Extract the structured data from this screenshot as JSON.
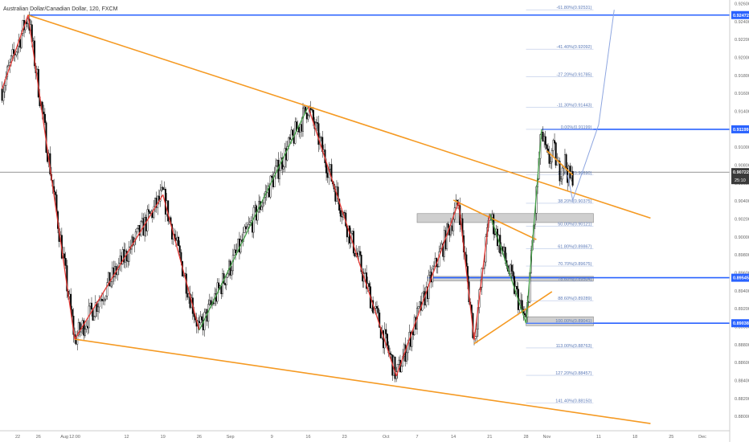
{
  "header": {
    "title": "Australian Dollar/Canadian Dollar, 120, FXCM"
  },
  "colors": {
    "candle": "#000000",
    "wedge": "#f59a23",
    "wave_down": "#e53935",
    "wave_up": "#43a047",
    "level_line": "#2962ff",
    "fib_text": "#5b7ab8",
    "zone_fill": "#cfcfcf",
    "zone_edge": "#888888",
    "current_price_line": "#555555",
    "axis_text": "#666666",
    "badge_text": "#ffffff",
    "projection": "#8ea6e0"
  },
  "chart_data": {
    "type": "line",
    "title": "Australian Dollar/Canadian Dollar, 120, FXCM",
    "xlabel": "",
    "ylabel": "",
    "ylim": [
      0.8784,
      0.9264
    ],
    "grid": false,
    "x_ticks": [
      "22",
      "26",
      "Aug",
      "12:00",
      "12",
      "19",
      "26",
      "Sep",
      "9",
      "16",
      "23",
      "Oct",
      "7",
      "14",
      "21",
      "28",
      "Nov",
      "11",
      "18",
      "25",
      "Dec"
    ],
    "y_ticks": [
      "0.92600",
      "0.92400",
      "0.92200",
      "0.92000",
      "0.91800",
      "0.91600",
      "0.91400",
      "0.91200",
      "0.91000",
      "0.90800",
      "0.90600",
      "0.90400",
      "0.90200",
      "0.90000",
      "0.89800",
      "0.89600",
      "0.89400",
      "0.89200",
      "0.89000",
      "0.88800",
      "0.88600",
      "0.88400",
      "0.88200",
      "0.88000"
    ],
    "price_badges": [
      {
        "label": "0.92472",
        "value": 0.92472,
        "color": "#2962ff"
      },
      {
        "label": "0.91199",
        "value": 0.91199,
        "color": "#2962ff"
      },
      {
        "label": "0.90722",
        "value": 0.90722,
        "color": "#3a3a3a",
        "sub": "25:10"
      },
      {
        "label": "0.89545",
        "value": 0.89545,
        "color": "#2962ff"
      },
      {
        "label": "0.89038",
        "value": 0.89038,
        "color": "#2962ff"
      }
    ],
    "horizontal_levels": [
      0.92472,
      0.91199,
      0.89545,
      0.89038
    ],
    "current_price": 0.90722,
    "fib_levels": [
      {
        "label": "-61.80%(0.92531)",
        "value": 0.92531
      },
      {
        "label": "-41.40%(0.92092)",
        "value": 0.92092
      },
      {
        "label": "-27.20%(0.91785)",
        "value": 0.91785
      },
      {
        "label": "-11.30%(0.91443)",
        "value": 0.91443
      },
      {
        "label": "0.00%(0.91199)",
        "value": 0.91199
      },
      {
        "label": "23.60%(0.90690)",
        "value": 0.9069
      },
      {
        "label": "38.20%(0.90375)",
        "value": 0.90375
      },
      {
        "label": "50.00%(0.90121)",
        "value": 0.90121
      },
      {
        "label": "61.80%(0.89867)",
        "value": 0.89867
      },
      {
        "label": "70.70%(0.89675)",
        "value": 0.89675
      },
      {
        "label": "78.60%(0.89504)",
        "value": 0.89504
      },
      {
        "label": "88.60%(0.89289)",
        "value": 0.89289
      },
      {
        "label": "100.00%(0.89041)",
        "value": 0.89041
      },
      {
        "label": "113.00%(0.88763)",
        "value": 0.88763
      },
      {
        "label": "127.20%(0.88457)",
        "value": 0.88457
      },
      {
        "label": "141.40%(0.88150)",
        "value": 0.8815
      }
    ],
    "zigzag": [
      {
        "date": "Jul 19",
        "price": 0.9165
      },
      {
        "date": "Jul 24",
        "price": 0.92472
      },
      {
        "date": "Aug 2",
        "price": 0.8886
      },
      {
        "date": "Aug 19",
        "price": 0.9047
      },
      {
        "date": "Aug 26",
        "price": 0.8896
      },
      {
        "date": "Sep 16",
        "price": 0.9145
      },
      {
        "date": "Oct 3",
        "price": 0.8845
      },
      {
        "date": "Oct 15",
        "price": 0.9039
      },
      {
        "date": "Oct 18",
        "price": 0.8885
      },
      {
        "date": "Oct 21",
        "price": 0.9026
      },
      {
        "date": "Oct 28",
        "price": 0.89038
      },
      {
        "date": "Oct 31",
        "price": 0.91199
      }
    ],
    "trendlines": [
      {
        "from": {
          "date": "Jul 24",
          "price": 0.92472
        },
        "to": {
          "date": "Nov 21",
          "price": 0.9021
        }
      },
      {
        "from": {
          "date": "Aug 2",
          "price": 0.8886
        },
        "to": {
          "date": "Nov 21",
          "price": 0.8792
        }
      },
      {
        "from": {
          "date": "Oct 14",
          "price": 0.9041
        },
        "to": {
          "date": "Oct 30",
          "price": 0.8997
        }
      },
      {
        "from": {
          "date": "Oct 18",
          "price": 0.8881
        },
        "to": {
          "date": "Nov 2",
          "price": 0.8939
        }
      },
      {
        "from": {
          "date": "Nov 1",
          "price": 0.9096
        },
        "to": {
          "date": "Nov 6",
          "price": 0.9069
        }
      }
    ],
    "zones": [
      {
        "from_date": "Oct 7",
        "to_date": "Nov 10",
        "high": 0.9026,
        "low": 0.9016
      },
      {
        "from_date": "Oct 9",
        "to_date": "Nov 10",
        "high": 0.8956,
        "low": 0.8951
      },
      {
        "from_date": "Oct 28",
        "to_date": "Nov 10",
        "high": 0.8911,
        "low": 0.8901
      }
    ],
    "projection": [
      {
        "date": "Nov 5",
        "price": 0.9069
      },
      {
        "date": "Nov 6",
        "price": 0.9041
      },
      {
        "date": "Nov 11",
        "price": 0.9125
      },
      {
        "date": "Nov 14",
        "price": 0.92531
      }
    ]
  }
}
